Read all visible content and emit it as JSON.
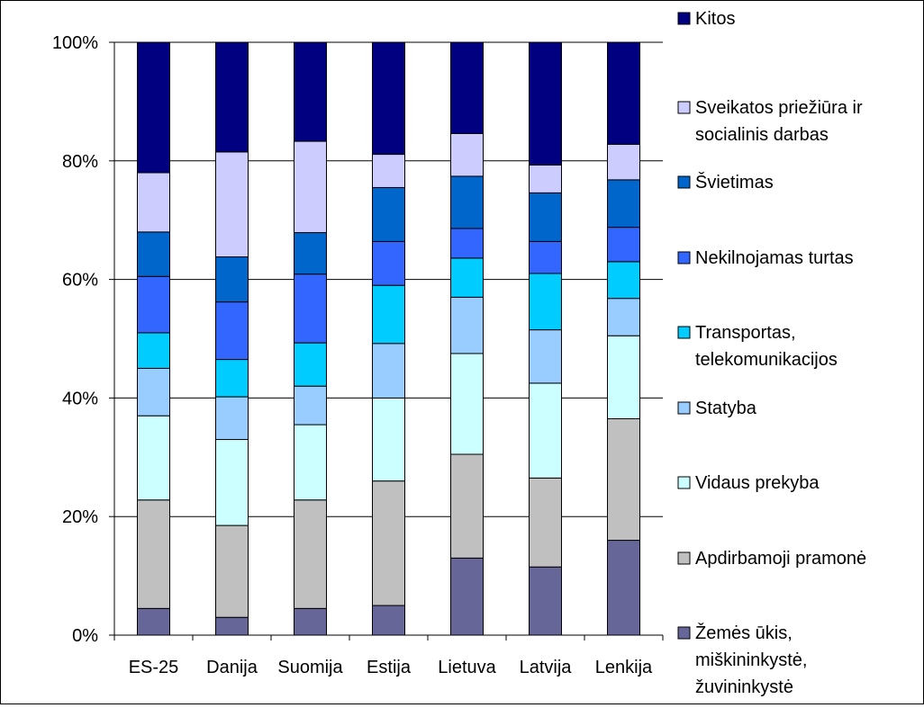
{
  "chart_data": {
    "type": "bar",
    "stacked": true,
    "percent": true,
    "categories": [
      "ES-25",
      "Danija",
      "Suomija",
      "Estija",
      "Lietuva",
      "Latvija",
      "Lenkija"
    ],
    "y_ticks": [
      "0%",
      "20%",
      "40%",
      "60%",
      "80%",
      "100%"
    ],
    "ylim": [
      0,
      100
    ],
    "grid": true,
    "legend_position": "right",
    "series": [
      {
        "name": "Žemės ūkis, miškininkystė, žuvininkystė",
        "color": "#666699",
        "values": [
          4.5,
          3,
          4.5,
          5,
          13,
          11.5,
          16
        ]
      },
      {
        "name": "Apdirbamoji pramonė",
        "color": "#c0c0c0",
        "values": [
          18.3,
          15.5,
          18.3,
          21,
          17.5,
          15,
          20.5
        ]
      },
      {
        "name": "Vidaus prekyba",
        "color": "#ccffff",
        "values": [
          14.2,
          14.5,
          12.7,
          14,
          17,
          16,
          14
        ]
      },
      {
        "name": "Statyba",
        "color": "#99ccff",
        "values": [
          8,
          7.2,
          6.5,
          9.2,
          9.5,
          9,
          6.3
        ]
      },
      {
        "name": "Transportas, telekomunikacijos",
        "color": "#00ccff",
        "values": [
          6,
          6.3,
          7.3,
          9.8,
          6.6,
          9.5,
          6.2
        ]
      },
      {
        "name": "Nekilnojamas turtas",
        "color": "#3366ff",
        "values": [
          9.5,
          9.7,
          11.6,
          7.4,
          5,
          5.4,
          5.8
        ]
      },
      {
        "name": "Švietimas",
        "color": "#0066cc",
        "values": [
          7.5,
          7.6,
          7,
          9.1,
          8.8,
          8.2,
          8
        ]
      },
      {
        "name": "Sveikatos priežiūra ir socialinis darbas",
        "color": "#ccccff",
        "values": [
          10,
          17.7,
          15.4,
          5.6,
          7.2,
          4.7,
          6
        ]
      },
      {
        "name": "Kitos",
        "color": "#000080",
        "values": [
          22,
          18.5,
          16.7,
          18.9,
          15.4,
          20.7,
          17.2
        ]
      }
    ],
    "legend_lines": [
      [
        "Kitos"
      ],
      [
        "Sveikatos priežiūra ir",
        "socialinis darbas"
      ],
      [
        "Švietimas"
      ],
      [
        "Nekilnojamas turtas"
      ],
      [
        "Transportas,",
        "telekomunikacijos"
      ],
      [
        "Statyba"
      ],
      [
        "Vidaus prekyba"
      ],
      [
        "Apdirbamoji pramonė"
      ],
      [
        "Žemės ūkis,",
        "miškininkystė,",
        "žuvininkystė"
      ]
    ]
  }
}
